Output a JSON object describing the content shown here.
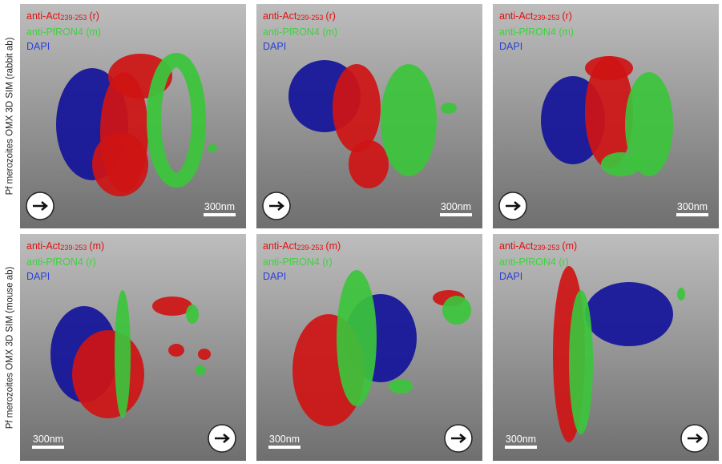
{
  "rows": [
    {
      "label": "Pf merozoites OMX 3D SIM (rabbit ab)",
      "panels": [
        {
          "lines": [
            {
              "text": "anti-Act",
              "sub": "239-253",
              "tail": "(r)"
            },
            {
              "text": "anti-PfRON4 (m)"
            },
            {
              "text": "DAPI"
            }
          ],
          "scale_bar": "300nm"
        },
        {
          "lines": [
            {
              "text": "anti-Act",
              "sub": "239-253",
              "tail": "(r)"
            },
            {
              "text": "anti-PfRON4 (m)"
            },
            {
              "text": "DAPI"
            }
          ],
          "scale_bar": "300nm"
        },
        {
          "lines": [
            {
              "text": "anti-Act",
              "sub": "239-253",
              "tail": "(r)"
            },
            {
              "text": "anti-PfRON4 (m)"
            },
            {
              "text": "DAPI"
            }
          ],
          "scale_bar": "300nm"
        }
      ]
    },
    {
      "label": "Pf merozoites OMX 3D SIM (mouse ab)",
      "panels": [
        {
          "lines": [
            {
              "text": "anti-Act",
              "sub": "239-253",
              "tail": "(m)"
            },
            {
              "text": "anti-PfRON4 (r)"
            },
            {
              "text": "DAPI"
            }
          ],
          "scale_bar": "300nm"
        },
        {
          "lines": [
            {
              "text": "anti-Act",
              "sub": "239-253",
              "tail": "(m)"
            },
            {
              "text": "anti-PfRON4 (r)"
            },
            {
              "text": "DAPI"
            }
          ],
          "scale_bar": "300nm"
        },
        {
          "lines": [
            {
              "text": "anti-Act",
              "sub": "239-253",
              "tail": "(m)"
            },
            {
              "text": "anti-PfRON4 (r)"
            },
            {
              "text": "DAPI"
            }
          ],
          "scale_bar": "300nm"
        }
      ]
    }
  ]
}
